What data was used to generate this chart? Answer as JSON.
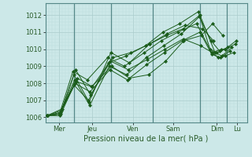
{
  "background_color": "#cce8e8",
  "plot_bg_color": "#cce8e8",
  "grid_major_color": "#aacccc",
  "grid_minor_color": "#bbdddd",
  "line_color": "#1a5c1a",
  "marker_color": "#1a5c1a",
  "xlabel": "Pression niveau de la mer( hPa )",
  "xlim": [
    0,
    6.0
  ],
  "ylim": [
    1005.7,
    1012.7
  ],
  "yticks": [
    1006,
    1007,
    1008,
    1009,
    1010,
    1011,
    1012
  ],
  "xtick_labels": [
    "Mer",
    "Jeu",
    "Ven",
    "Sam",
    "Dim",
    "Lu"
  ],
  "xtick_positions": [
    0.4,
    1.4,
    2.6,
    3.8,
    5.1,
    5.7
  ],
  "day_lines": [
    0.85,
    1.95,
    3.2,
    4.6,
    5.4
  ],
  "series": [
    {
      "x": [
        0.05,
        0.45,
        0.85,
        1.3,
        1.95,
        2.5,
        3.1,
        3.6,
        4.1,
        4.6,
        5.05,
        5.25,
        5.55
      ],
      "y": [
        1006.1,
        1006.2,
        1008.5,
        1006.9,
        1009.8,
        1009.2,
        1010.3,
        1010.8,
        1011.2,
        1012.0,
        1009.8,
        1009.6,
        1010.1
      ]
    },
    {
      "x": [
        0.05,
        0.42,
        0.82,
        1.25,
        1.85,
        2.35,
        2.95,
        3.45,
        3.95,
        4.5,
        4.95,
        5.15,
        5.35,
        5.6
      ],
      "y": [
        1006.1,
        1006.2,
        1008.7,
        1008.2,
        1009.5,
        1009.0,
        1009.8,
        1010.5,
        1011.0,
        1011.5,
        1009.8,
        1009.5,
        1009.6,
        1009.8
      ]
    },
    {
      "x": [
        0.05,
        0.4,
        0.85,
        1.28,
        1.88,
        2.4,
        2.98,
        3.5,
        4.0,
        4.55,
        4.9,
        5.1,
        5.35,
        5.65
      ],
      "y": [
        1006.1,
        1006.2,
        1007.9,
        1007.0,
        1009.2,
        1009.6,
        1010.2,
        1011.0,
        1011.5,
        1012.2,
        1010.0,
        1009.8,
        1010.0,
        1010.3
      ]
    },
    {
      "x": [
        0.05,
        0.43,
        0.87,
        1.32,
        1.9,
        2.42,
        3.0,
        3.52,
        4.05,
        4.58,
        4.93,
        5.18,
        5.42,
        5.68
      ],
      "y": [
        1006.1,
        1006.2,
        1008.2,
        1006.7,
        1009.0,
        1008.5,
        1009.5,
        1010.2,
        1010.9,
        1011.9,
        1010.5,
        1009.9,
        1010.1,
        1010.5
      ]
    },
    {
      "x": [
        0.05,
        0.44,
        0.88,
        1.33,
        1.92,
        2.44,
        3.02,
        3.54,
        4.08,
        4.6,
        4.95,
        5.22,
        5.5
      ],
      "y": [
        1006.1,
        1006.1,
        1008.0,
        1007.5,
        1008.8,
        1008.2,
        1009.1,
        1009.8,
        1010.5,
        1011.0,
        1009.7,
        1009.5,
        1009.9
      ]
    },
    {
      "x": [
        0.05,
        0.46,
        0.9,
        1.35,
        1.94,
        2.46,
        3.04,
        3.56,
        4.1,
        4.62,
        4.97,
        5.24
      ],
      "y": [
        1006.1,
        1006.3,
        1008.8,
        1007.3,
        1009.3,
        1008.8,
        1009.4,
        1010.0,
        1010.6,
        1010.2,
        1009.8,
        1010.0
      ]
    },
    {
      "x": [
        0.05,
        0.48,
        0.92,
        1.38,
        1.97,
        2.5,
        3.07,
        3.58,
        4.12,
        4.64,
        4.98,
        5.28
      ],
      "y": [
        1006.1,
        1006.4,
        1008.1,
        1007.8,
        1009.0,
        1008.3,
        1008.5,
        1009.3,
        1010.5,
        1010.8,
        1011.5,
        1010.8
      ]
    },
    {
      "x": [
        0.05,
        0.5,
        0.95,
        1.4,
        2.0,
        2.55,
        3.1,
        3.62,
        4.15,
        4.68,
        5.0
      ],
      "y": [
        1006.1,
        1006.5,
        1008.3,
        1007.8,
        1009.5,
        1009.8,
        1010.3,
        1010.9,
        1011.4,
        1011.2,
        1010.5
      ]
    }
  ]
}
